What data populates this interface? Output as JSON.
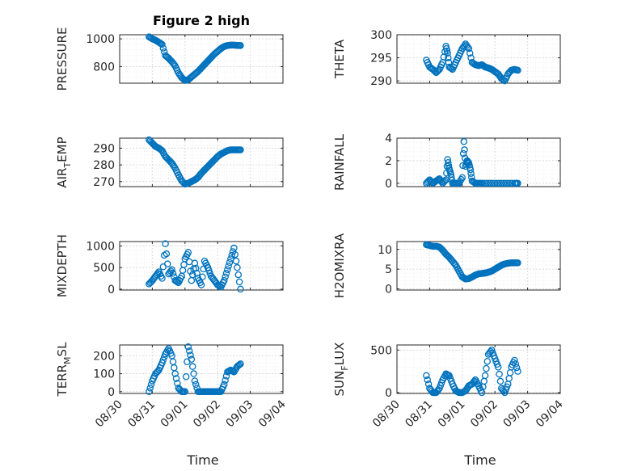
{
  "chart_data": [
    {
      "type": "scatter",
      "title": "Figure 2 high",
      "ylabel": "PRESSURE",
      "ylim": [
        680,
        1030
      ],
      "yticks": [
        800,
        1000
      ],
      "x": [
        0.9,
        1.0,
        1.1,
        1.2,
        1.3,
        1.4,
        1.5,
        1.6,
        1.7,
        1.8,
        1.9,
        2.0,
        2.1,
        2.2,
        2.3,
        2.4,
        2.5,
        2.6,
        2.7,
        2.8,
        2.9,
        3.0,
        3.1,
        3.2,
        3.3,
        3.4,
        3.5,
        3.6,
        3.7
      ],
      "values": [
        1015,
        1000,
        990,
        975,
        960,
        880,
        860,
        835,
        805,
        755,
        720,
        700,
        705,
        725,
        745,
        765,
        790,
        815,
        840,
        865,
        890,
        910,
        930,
        945,
        952,
        955,
        955,
        953,
        952
      ],
      "series_name": "",
      "color": "#0072BD",
      "xlim": [
        0,
        5
      ],
      "xticklabels": [
        "08/30",
        "08/31",
        "09/01",
        "09/02",
        "09/03",
        "09/04"
      ],
      "xticks": [
        0,
        1,
        2,
        3,
        4,
        5
      ]
    },
    {
      "type": "scatter",
      "title": "",
      "ylabel": "THETA",
      "ylim": [
        289.5,
        300
      ],
      "yticks": [
        290,
        295,
        300
      ],
      "x": [
        0.9,
        1.0,
        1.1,
        1.2,
        1.3,
        1.4,
        1.5,
        1.55,
        1.6,
        1.7,
        1.8,
        1.9,
        2.0,
        2.1,
        2.2,
        2.3,
        2.4,
        2.5,
        2.6,
        2.7,
        2.8,
        2.9,
        3.0,
        3.1,
        3.2,
        3.3,
        3.4,
        3.5,
        3.6,
        3.7
      ],
      "values": [
        294.5,
        293,
        292.5,
        291.8,
        292.5,
        294,
        297.5,
        296,
        293,
        292.5,
        294,
        295.5,
        297,
        298,
        297,
        294,
        293.5,
        293.3,
        293.5,
        293,
        292.8,
        292.5,
        292,
        291.5,
        290.5,
        290,
        291.5,
        292.3,
        292.5,
        292.3
      ],
      "color": "#0072BD",
      "xlim": [
        0,
        5
      ],
      "xticklabels": [
        "08/30",
        "08/31",
        "09/01",
        "09/02",
        "09/03",
        "09/04"
      ],
      "xticks": [
        0,
        1,
        2,
        3,
        4,
        5
      ]
    },
    {
      "type": "scatter",
      "title": "",
      "ylabel_main": "AIR",
      "ylabel_sub": "T",
      "ylabel_tail": "EMP",
      "ylim": [
        267,
        296
      ],
      "yticks": [
        270,
        280,
        290
      ],
      "x": [
        0.9,
        1.0,
        1.1,
        1.2,
        1.3,
        1.4,
        1.5,
        1.6,
        1.7,
        1.8,
        1.9,
        2.0,
        2.1,
        2.2,
        2.3,
        2.4,
        2.5,
        2.6,
        2.7,
        2.8,
        2.9,
        3.0,
        3.1,
        3.2,
        3.3,
        3.4,
        3.5,
        3.6,
        3.7
      ],
      "values": [
        295,
        293,
        291,
        290,
        288.5,
        285,
        283,
        281,
        278,
        274,
        270.5,
        268.5,
        269,
        270,
        271,
        272.5,
        275,
        277,
        279,
        281,
        283,
        285,
        286.5,
        287.5,
        288.5,
        289,
        289,
        289,
        289
      ],
      "color": "#0072BD",
      "xlim": [
        0,
        5
      ],
      "xticklabels": [
        "08/30",
        "08/31",
        "09/01",
        "09/02",
        "09/03",
        "09/04"
      ],
      "xticks": [
        0,
        1,
        2,
        3,
        4,
        5
      ]
    },
    {
      "type": "scatter",
      "title": "",
      "ylabel": "RAINFALL",
      "ylim": [
        -0.3,
        4
      ],
      "yticks": [
        0,
        2,
        4
      ],
      "x": [
        0.9,
        1.0,
        1.1,
        1.2,
        1.3,
        1.4,
        1.5,
        1.55,
        1.6,
        1.65,
        1.7,
        1.8,
        1.9,
        2.0,
        2.05,
        2.1,
        2.15,
        2.2,
        2.25,
        2.3,
        2.4,
        2.5,
        2.6,
        2.8,
        3.0,
        3.2,
        3.4,
        3.6,
        3.7
      ],
      "values": [
        0,
        0.3,
        0,
        0.2,
        0.4,
        0,
        0.3,
        2.1,
        1.3,
        0.8,
        0,
        0,
        0,
        0.5,
        3.7,
        1.5,
        2.0,
        1.8,
        1.2,
        0.2,
        0,
        0,
        0,
        0,
        0,
        0,
        0,
        0,
        0
      ],
      "color": "#0072BD",
      "xlim": [
        0,
        5
      ],
      "xticklabels": [
        "08/30",
        "08/31",
        "09/01",
        "09/02",
        "09/03",
        "09/04"
      ],
      "xticks": [
        0,
        1,
        2,
        3,
        4,
        5
      ]
    },
    {
      "type": "scatter",
      "title": "",
      "ylabel": "MIXDEPTH",
      "ylim": [
        -20,
        1100
      ],
      "yticks": [
        0,
        500,
        1000
      ],
      "x": [
        0.9,
        1.0,
        1.1,
        1.2,
        1.3,
        1.4,
        1.5,
        1.6,
        1.7,
        1.8,
        1.9,
        2.0,
        2.1,
        2.2,
        2.3,
        2.4,
        2.5,
        2.6,
        2.7,
        2.8,
        2.9,
        3.0,
        3.1,
        3.2,
        3.3,
        3.4,
        3.5,
        3.6,
        3.7
      ],
      "values": [
        120,
        200,
        300,
        400,
        250,
        1050,
        350,
        450,
        200,
        150,
        300,
        700,
        850,
        200,
        600,
        250,
        100,
        650,
        500,
        300,
        200,
        100,
        50,
        200,
        450,
        700,
        950,
        500,
        0
      ],
      "color": "#0072BD",
      "xlim": [
        0,
        5
      ],
      "xticklabels": [
        "08/30",
        "08/31",
        "09/01",
        "09/02",
        "09/03",
        "09/04"
      ],
      "xticks": [
        0,
        1,
        2,
        3,
        4,
        5
      ]
    },
    {
      "type": "scatter",
      "title": "",
      "ylabel": "H2OMIXRA",
      "ylim": [
        -0.3,
        12
      ],
      "yticks": [
        0,
        5,
        10
      ],
      "x": [
        0.9,
        1.0,
        1.1,
        1.2,
        1.3,
        1.4,
        1.5,
        1.6,
        1.7,
        1.8,
        1.9,
        2.0,
        2.1,
        2.2,
        2.3,
        2.4,
        2.5,
        2.6,
        2.7,
        2.8,
        2.9,
        3.0,
        3.1,
        3.2,
        3.3,
        3.4,
        3.5,
        3.6,
        3.7
      ],
      "values": [
        11.2,
        11.0,
        10.8,
        10.8,
        10.6,
        9.8,
        8.8,
        8.0,
        7.0,
        6.0,
        4.5,
        3.0,
        2.5,
        2.6,
        3.0,
        3.5,
        3.8,
        3.9,
        4.0,
        4.2,
        4.5,
        5.0,
        5.5,
        6.0,
        6.3,
        6.5,
        6.6,
        6.6,
        6.6
      ],
      "color": "#0072BD",
      "xlim": [
        0,
        5
      ],
      "xticklabels": [
        "08/30",
        "08/31",
        "09/01",
        "09/02",
        "09/03",
        "09/04"
      ],
      "xticks": [
        0,
        1,
        2,
        3,
        4,
        5
      ]
    },
    {
      "type": "scatter",
      "title": "",
      "ylabel_main": "TERR",
      "ylabel_sub": "M",
      "ylabel_tail": "SL",
      "ylim": [
        -10,
        260
      ],
      "yticks": [
        0,
        100,
        200
      ],
      "x": [
        0.9,
        1.0,
        1.1,
        1.2,
        1.3,
        1.4,
        1.5,
        1.6,
        1.7,
        1.8,
        1.9,
        2.0,
        2.1,
        2.2,
        2.3,
        2.4,
        2.5,
        2.6,
        2.7,
        2.8,
        2.9,
        3.0,
        3.1,
        3.2,
        3.3,
        3.4,
        3.5,
        3.6,
        3.7
      ],
      "values": [
        0,
        60,
        100,
        120,
        160,
        210,
        240,
        200,
        100,
        20,
        0,
        0,
        250,
        180,
        60,
        0,
        0,
        0,
        0,
        0,
        0,
        0,
        0,
        40,
        110,
        120,
        110,
        140,
        155
      ],
      "color": "#0072BD",
      "xlim": [
        0,
        5
      ],
      "xticklabels": [
        "08/30",
        "08/31",
        "09/01",
        "09/02",
        "09/03",
        "09/04"
      ],
      "xticks": [
        0,
        1,
        2,
        3,
        4,
        5
      ]
    },
    {
      "type": "scatter",
      "title": "",
      "ylabel_main": "SUN",
      "ylabel_sub": "F",
      "ylabel_tail": "LUX",
      "ylim": [
        -10,
        560
      ],
      "yticks": [
        0,
        500
      ],
      "x": [
        0.9,
        1.0,
        1.1,
        1.2,
        1.3,
        1.4,
        1.5,
        1.6,
        1.7,
        1.8,
        1.9,
        2.0,
        2.1,
        2.2,
        2.3,
        2.4,
        2.5,
        2.6,
        2.7,
        2.8,
        2.9,
        3.0,
        3.1,
        3.2,
        3.3,
        3.4,
        3.5,
        3.6,
        3.7
      ],
      "values": [
        200,
        50,
        0,
        0,
        50,
        150,
        220,
        200,
        100,
        20,
        0,
        0,
        20,
        80,
        100,
        150,
        80,
        0,
        200,
        450,
        500,
        400,
        300,
        50,
        0,
        100,
        300,
        380,
        250
      ],
      "color": "#0072BD",
      "xlim": [
        0,
        5
      ],
      "xticklabels": [
        "08/30",
        "08/31",
        "09/01",
        "09/02",
        "09/03",
        "09/04"
      ],
      "xticks": [
        0,
        1,
        2,
        3,
        4,
        5
      ]
    }
  ],
  "xlabel": "Time"
}
